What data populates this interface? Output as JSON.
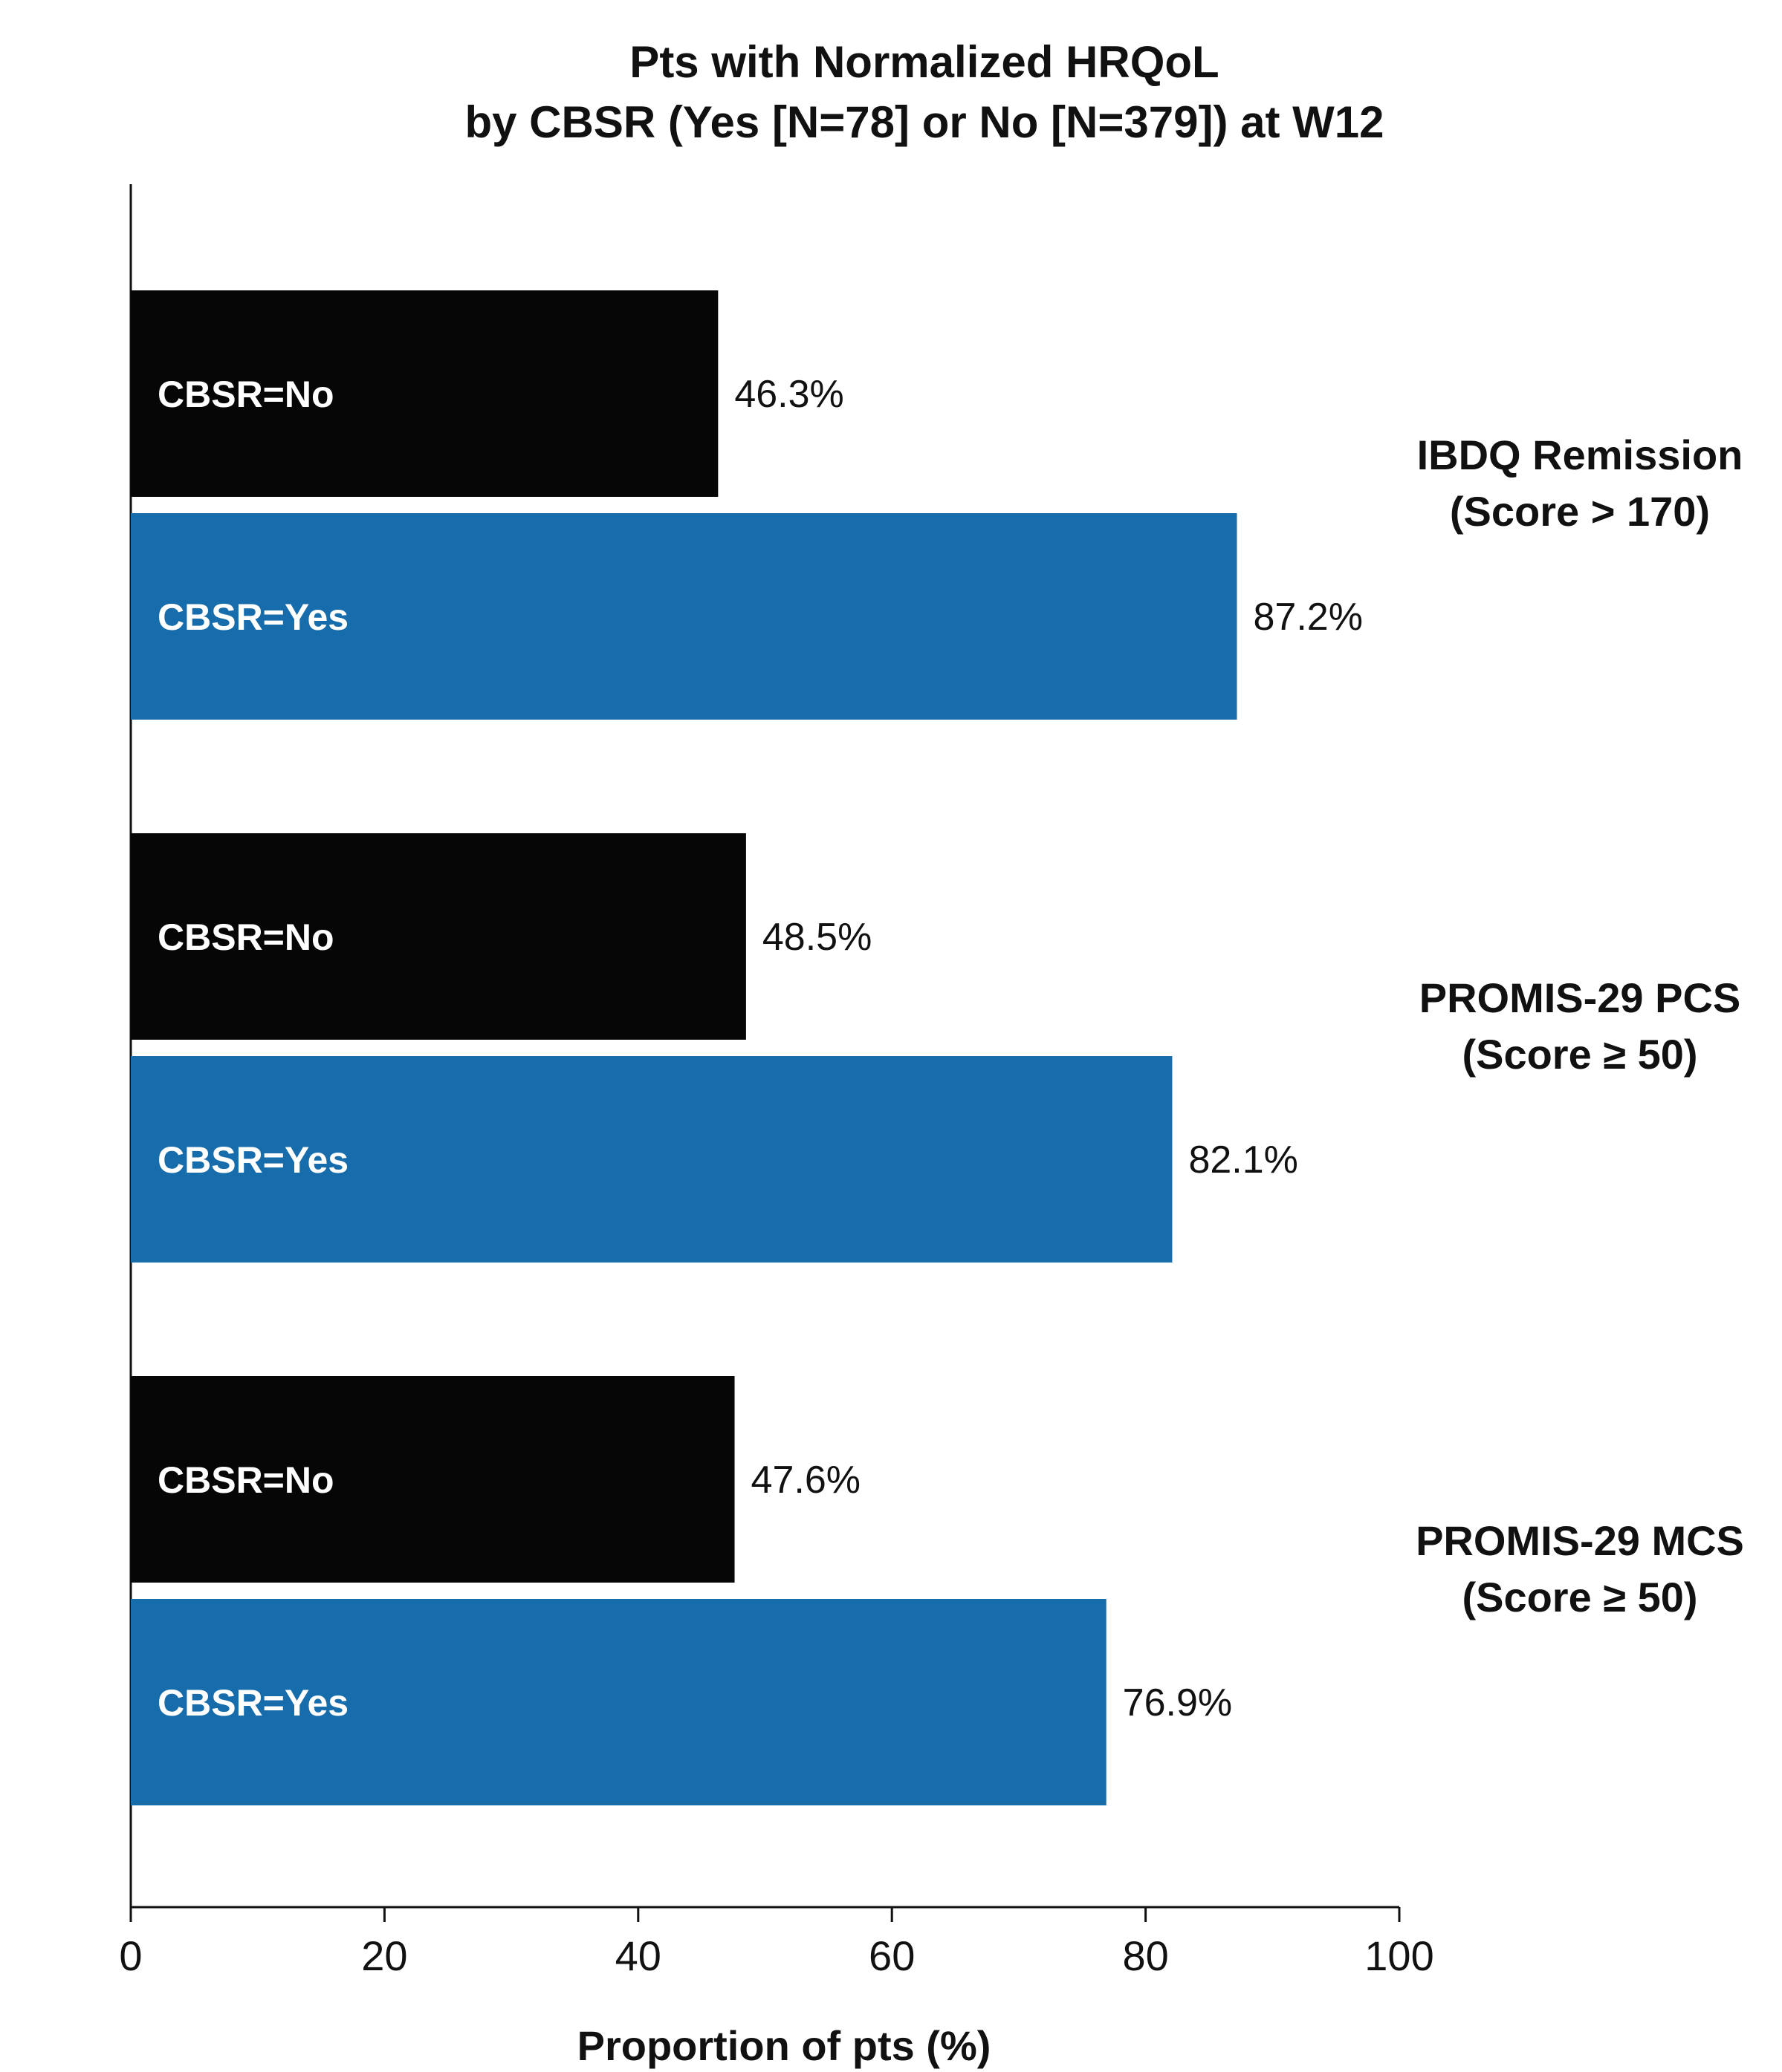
{
  "chart_data": {
    "type": "bar",
    "orientation": "horizontal",
    "title_lines": [
      "Pts with Normalized HRQoL",
      "by CBSR (Yes [N=78] or No [N=379]) at W12"
    ],
    "xlabel": "Proportion of pts (%)",
    "ylabel": "",
    "xlim": [
      0,
      100
    ],
    "xticks": [
      0,
      20,
      40,
      60,
      80,
      100
    ],
    "grid": false,
    "colors": {
      "CBSR=No": "#060606",
      "CBSR=Yes": "#176dab"
    },
    "groups": [
      {
        "label_lines": [
          "IBDQ Remission",
          "(Score > 170)"
        ],
        "bars": [
          {
            "label": "CBSR=No",
            "value": 46.3,
            "value_label": "46.3%"
          },
          {
            "label": "CBSR=Yes",
            "value": 87.2,
            "value_label": "87.2%"
          }
        ]
      },
      {
        "label_lines": [
          "PROMIS-29 PCS",
          "(Score ≥ 50)"
        ],
        "bars": [
          {
            "label": "CBSR=No",
            "value": 48.5,
            "value_label": "48.5%"
          },
          {
            "label": "CBSR=Yes",
            "value": 82.1,
            "value_label": "82.1%"
          }
        ]
      },
      {
        "label_lines": [
          "PROMIS-29 MCS",
          "(Score ≥ 50)"
        ],
        "bars": [
          {
            "label": "CBSR=No",
            "value": 47.6,
            "value_label": "47.6%"
          },
          {
            "label": "CBSR=Yes",
            "value": 76.9,
            "value_label": "76.9%"
          }
        ]
      }
    ]
  }
}
